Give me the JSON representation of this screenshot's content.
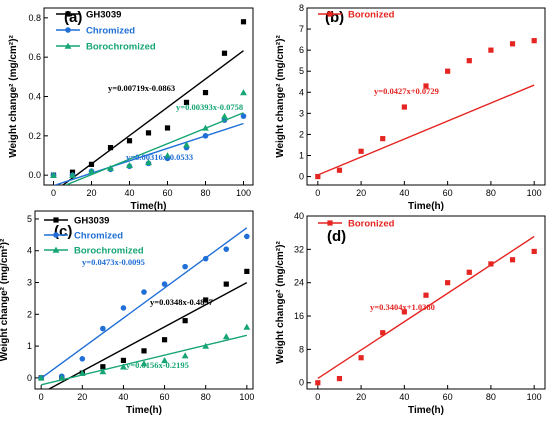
{
  "chart_data": [
    {
      "panel": "(a)",
      "type": "scatter",
      "xlabel": "Time(h)",
      "ylabel": "Weight change² (mg/cm²)²",
      "xlim": [
        -5,
        105
      ],
      "ylim": [
        -0.05,
        0.85
      ],
      "xticks": [
        0,
        20,
        40,
        60,
        80,
        100
      ],
      "yticks": [
        0.0,
        0.2,
        0.4,
        0.6,
        0.8
      ],
      "ytick_labels": [
        "0.0",
        "0.2",
        "0.4",
        "0.6",
        "0.8"
      ],
      "legend_position": "top-left",
      "series": [
        {
          "name": "GH3039",
          "color": "#000000",
          "marker": "square",
          "x": [
            0,
            10,
            20,
            30,
            40,
            50,
            60,
            70,
            80,
            90,
            100
          ],
          "y": [
            0.0,
            0.015,
            0.055,
            0.14,
            0.175,
            0.215,
            0.24,
            0.37,
            0.42,
            0.62,
            0.78
          ],
          "fit": {
            "slope": 0.00719,
            "intercept": -0.0863,
            "label": "y=0.00719x-0.0863"
          }
        },
        {
          "name": "Chromized",
          "color": "#1f6fd6",
          "marker": "circle",
          "x": [
            0,
            10,
            20,
            30,
            40,
            50,
            60,
            70,
            80,
            90,
            100
          ],
          "y": [
            0.0,
            0.0,
            0.02,
            0.03,
            0.045,
            0.06,
            0.085,
            0.14,
            0.2,
            0.28,
            0.3
          ],
          "fit": {
            "slope": 0.00316,
            "intercept": -0.0533,
            "label": "y=0.00316x-0.0533"
          }
        },
        {
          "name": "Borochromized",
          "color": "#17a673",
          "marker": "triangle",
          "x": [
            0,
            10,
            20,
            30,
            40,
            50,
            60,
            70,
            80,
            90,
            100
          ],
          "y": [
            0.0,
            0.0,
            0.02,
            0.035,
            0.05,
            0.065,
            0.1,
            0.155,
            0.24,
            0.3,
            0.42
          ],
          "fit": {
            "slope": 0.00393,
            "intercept": -0.0758,
            "label": "y=0.00393x-0.0758"
          }
        }
      ]
    },
    {
      "panel": "(b)",
      "type": "scatter",
      "xlabel": "Time(h)",
      "ylabel": "Weight change² (mg/cm²)²",
      "xlim": [
        -5,
        105
      ],
      "ylim": [
        -0.4,
        8
      ],
      "xticks": [
        0,
        20,
        40,
        60,
        80,
        100
      ],
      "yticks": [
        0,
        1,
        2,
        3,
        4,
        5,
        6,
        7,
        8
      ],
      "ytick_labels": [
        "0",
        "1",
        "2",
        "3",
        "4",
        "5",
        "6",
        "7",
        "8"
      ],
      "legend_position": "top-left",
      "series": [
        {
          "name": "Boronized",
          "color": "#e52521",
          "marker": "square",
          "x": [
            0,
            10,
            20,
            30,
            40,
            50,
            60,
            70,
            80,
            90,
            100
          ],
          "y": [
            0.0,
            0.3,
            1.2,
            1.8,
            3.3,
            4.3,
            5.0,
            5.5,
            6.0,
            6.3,
            6.45
          ],
          "fit": {
            "slope": 0.0427,
            "intercept": 0.0729,
            "label": "y=0.0427x+0.0729"
          }
        }
      ]
    },
    {
      "panel": "(c)",
      "type": "scatter",
      "xlabel": "Time(h)",
      "ylabel": "Weight change² (mg/cm²)²",
      "xlim": [
        -3,
        103
      ],
      "ylim": [
        -0.35,
        5.25
      ],
      "xticks": [
        0,
        20,
        40,
        60,
        80,
        100
      ],
      "yticks": [
        0,
        1,
        2,
        3,
        4,
        5
      ],
      "ytick_labels": [
        "0",
        "1",
        "2",
        "3",
        "4",
        "5"
      ],
      "legend_position": "top-left",
      "series": [
        {
          "name": "GH3039",
          "color": "#000000",
          "marker": "square",
          "x": [
            0,
            10,
            20,
            30,
            40,
            50,
            60,
            70,
            80,
            90,
            100
          ],
          "y": [
            0.0,
            0.0,
            0.15,
            0.35,
            0.55,
            0.85,
            1.2,
            1.8,
            2.45,
            2.95,
            3.35
          ],
          "fit": {
            "slope": 0.0348,
            "intercept": -0.4837,
            "label": "y=0.0348x-0.4837"
          }
        },
        {
          "name": "Chromized",
          "color": "#1f6fd6",
          "marker": "circle",
          "x": [
            0,
            10,
            20,
            30,
            40,
            50,
            60,
            70,
            80,
            90,
            100
          ],
          "y": [
            0.0,
            0.05,
            0.6,
            1.55,
            2.2,
            2.7,
            2.95,
            3.5,
            3.75,
            4.05,
            4.45
          ],
          "fit": {
            "slope": 0.0473,
            "intercept": -0.0095,
            "label": "y=0.0473x-0.0095"
          }
        },
        {
          "name": "Borochromized",
          "color": "#17a673",
          "marker": "triangle",
          "x": [
            0,
            10,
            20,
            30,
            40,
            50,
            60,
            70,
            80,
            90,
            100
          ],
          "y": [
            0.0,
            0.0,
            0.15,
            0.2,
            0.35,
            0.45,
            0.55,
            0.7,
            1.0,
            1.3,
            1.6
          ],
          "fit": {
            "slope": 0.0156,
            "intercept": -0.2195,
            "label": "y=0.0156x-0.2195"
          }
        }
      ]
    },
    {
      "panel": "(d)",
      "type": "scatter",
      "xlabel": "Time(h)",
      "ylabel": "Weight change² (mg/cm²)²",
      "xlim": [
        -5,
        105
      ],
      "ylim": [
        -1.5,
        40
      ],
      "xticks": [
        0,
        20,
        40,
        60,
        80,
        100
      ],
      "yticks": [
        0,
        8,
        16,
        24,
        32,
        40
      ],
      "ytick_labels": [
        "0",
        "8",
        "16",
        "24",
        "32",
        "40"
      ],
      "legend_position": "top-left",
      "series": [
        {
          "name": "Boronized",
          "color": "#e52521",
          "marker": "square",
          "x": [
            0,
            10,
            20,
            30,
            40,
            50,
            60,
            70,
            80,
            90,
            100
          ],
          "y": [
            0.0,
            1.0,
            6.0,
            12.0,
            17.0,
            21.0,
            24.0,
            26.5,
            28.5,
            29.5,
            31.5
          ],
          "fit": {
            "slope": 0.3404,
            "intercept": 1.038,
            "label": "y=0.3404x+1.0380"
          }
        }
      ]
    }
  ]
}
